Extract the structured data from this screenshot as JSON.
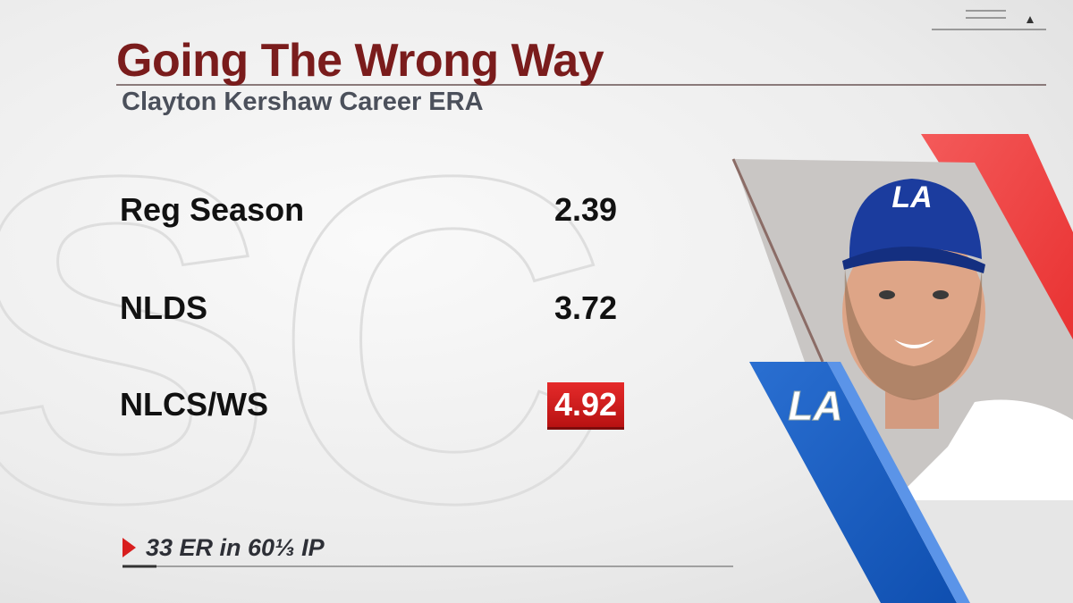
{
  "header": {
    "title": "Going The Wrong Way",
    "subtitle": "Clayton Kershaw Career ERA"
  },
  "table": {
    "rows": [
      [
        "Reg Season",
        "2.39"
      ],
      [
        "NLDS",
        "3.72"
      ],
      [
        "NLCS/WS",
        "4.92"
      ]
    ],
    "highlight_row": 2
  },
  "footnote": "33 ER in 60⅓ IP",
  "logo_text": "LA"
}
